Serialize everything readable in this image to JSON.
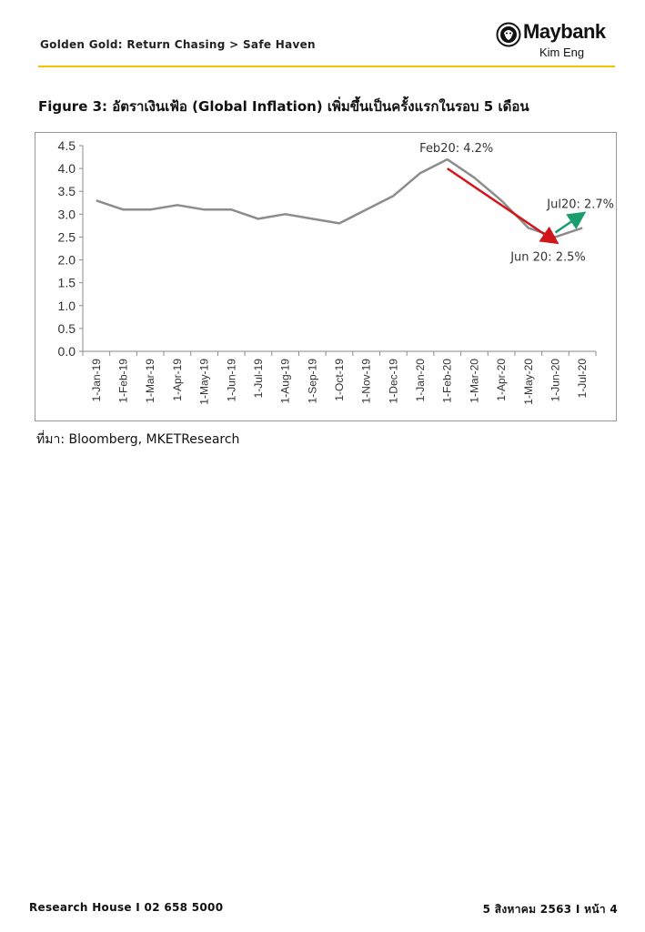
{
  "header": {
    "title": "Golden Gold: Return Chasing > Safe Haven",
    "logo_main": "Maybank",
    "logo_sub": "Kim Eng"
  },
  "figure": {
    "title": "Figure 3: อัตราเงินเฟ้อ (Global Inflation) เพิ่มขึ้นเป็นครั้งแรกในรอบ 5 เดือน",
    "source": "ที่มา: Bloomberg, MKETResearch"
  },
  "chart_data": {
    "type": "line",
    "title": "",
    "xlabel": "",
    "ylabel": "",
    "ylim": [
      0,
      4.5
    ],
    "yticks": [
      "0.0",
      "0.5",
      "1.0",
      "1.5",
      "2.0",
      "2.5",
      "3.0",
      "3.5",
      "4.0",
      "4.5"
    ],
    "grid": false,
    "categories": [
      "1-Jan-19",
      "1-Feb-19",
      "1-Mar-19",
      "1-Apr-19",
      "1-May-19",
      "1-Jun-19",
      "1-Jul-19",
      "1-Aug-19",
      "1-Sep-19",
      "1-Oct-19",
      "1-Nov-19",
      "1-Dec-19",
      "1-Jan-20",
      "1-Feb-20",
      "1-Mar-20",
      "1-Apr-20",
      "1-May-20",
      "1-Jun-20",
      "1-Jul-20"
    ],
    "series": [
      {
        "values": [
          3.3,
          3.1,
          3.1,
          3.2,
          3.1,
          3.1,
          2.9,
          3.0,
          2.9,
          2.8,
          3.1,
          3.4,
          3.9,
          4.2,
          3.8,
          3.3,
          2.7,
          2.5,
          2.7
        ],
        "color": "#8c8c8c"
      }
    ],
    "annotations": [
      {
        "text": "Feb20: 4.2%",
        "category": "1-Feb-20",
        "value": 4.2
      },
      {
        "text": "Jun 20: 2.5%",
        "category": "1-Jun-20",
        "value": 2.5
      },
      {
        "text": "Jul20: 2.7%",
        "category": "1-Jul-20",
        "value": 2.7
      }
    ],
    "arrows": [
      {
        "from": [
          "1-Feb-20",
          4.0
        ],
        "to": [
          "1-Jun-20",
          2.4
        ],
        "color": "#d0161b"
      },
      {
        "from": [
          "1-Jun-20",
          2.6
        ],
        "to": [
          "1-Jul-20",
          3.0
        ],
        "color": "#1a9e6e"
      }
    ]
  },
  "footer": {
    "left": "Research House I 02 658 5000",
    "right": "5 สิงหาคม 2563 I หน้า 4"
  },
  "colors": {
    "accent_rule": "#f5c400",
    "line": "#8c8c8c"
  }
}
